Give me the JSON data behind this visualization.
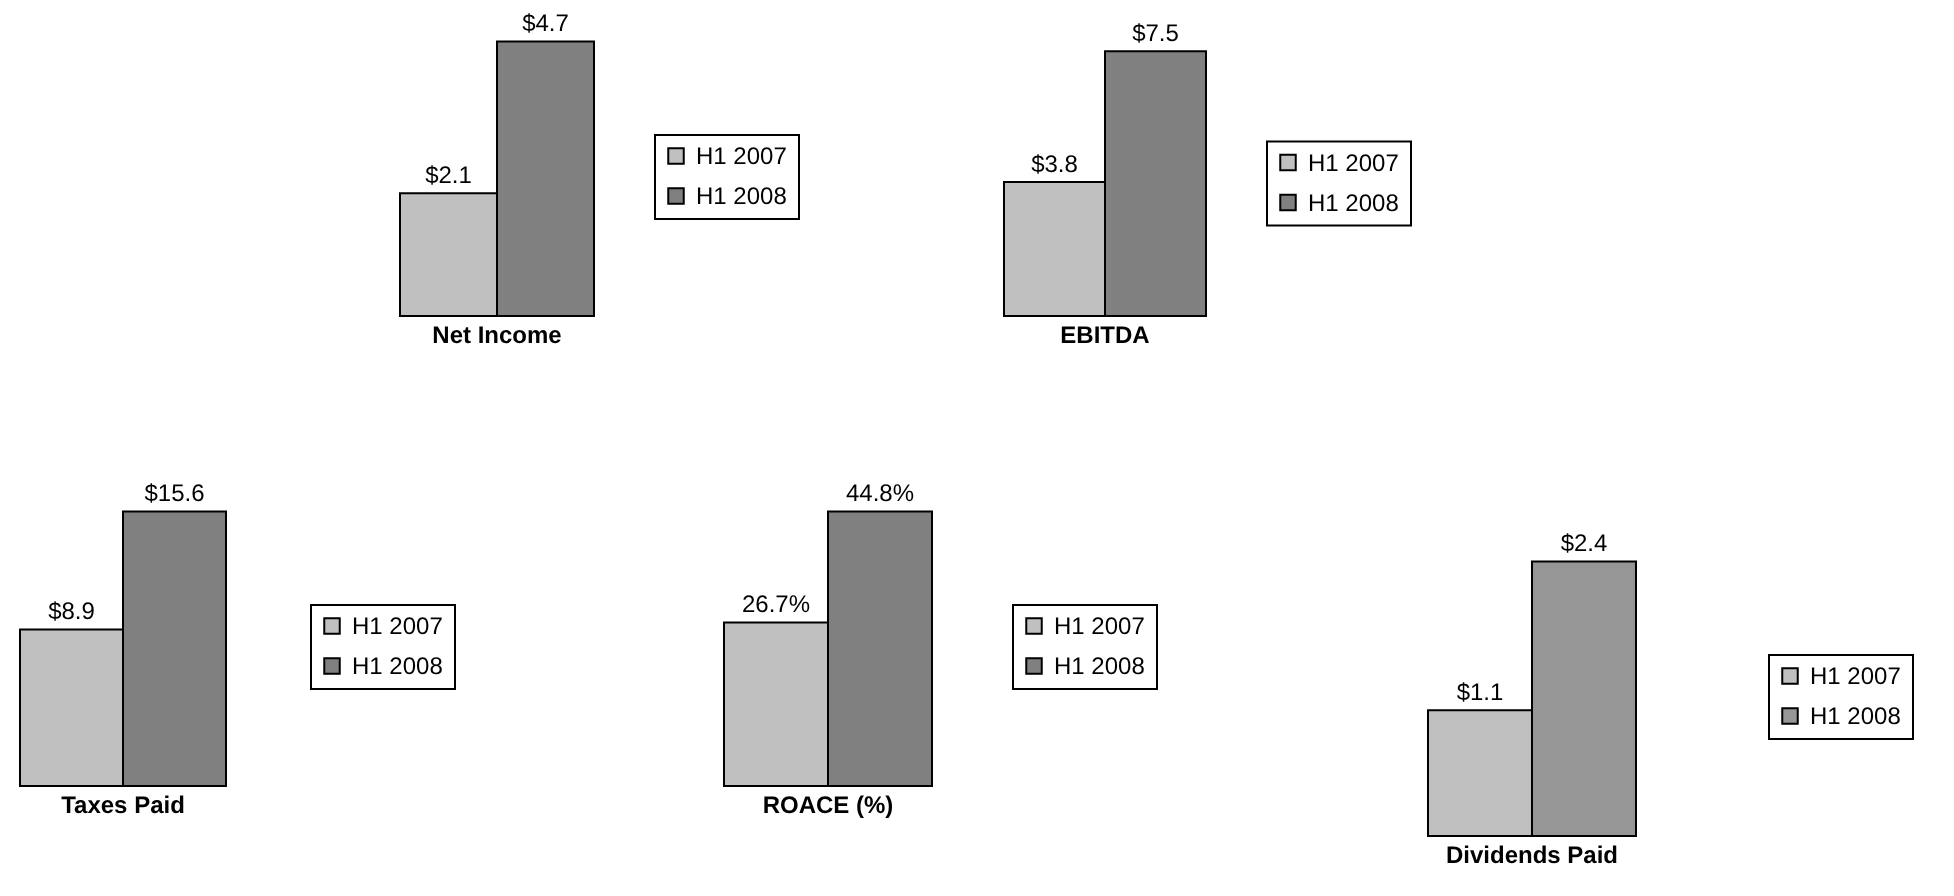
{
  "chart_data": [
    {
      "type": "bar",
      "categories": [
        "Net Income"
      ],
      "legend": "right",
      "series": [
        {
          "name": "H1 2007",
          "color": "#c0c0c0",
          "values": [
            2.1
          ],
          "value_labels": [
            "$2.1"
          ]
        },
        {
          "name": "H1 2008",
          "color": "#808080",
          "values": [
            4.7
          ],
          "value_labels": [
            "$4.7"
          ]
        }
      ]
    },
    {
      "type": "bar",
      "categories": [
        "EBITDA"
      ],
      "legend": "right",
      "series": [
        {
          "name": "H1 2007",
          "color": "#c0c0c0",
          "values": [
            3.8
          ],
          "value_labels": [
            "$3.8"
          ]
        },
        {
          "name": "H1 2008",
          "color": "#808080",
          "values": [
            7.5
          ],
          "value_labels": [
            "$7.5"
          ]
        }
      ]
    },
    {
      "type": "bar",
      "categories": [
        "Taxes Paid"
      ],
      "legend": "right",
      "series": [
        {
          "name": "H1 2007",
          "color": "#c0c0c0",
          "values": [
            8.9
          ],
          "value_labels": [
            "$8.9"
          ]
        },
        {
          "name": "H1 2008",
          "color": "#808080",
          "values": [
            15.6
          ],
          "value_labels": [
            "$15.6"
          ]
        }
      ]
    },
    {
      "type": "bar",
      "categories": [
        "ROACE (%)"
      ],
      "legend": "right",
      "series": [
        {
          "name": "H1 2007",
          "color": "#c0c0c0",
          "values": [
            26.7
          ],
          "value_labels": [
            "26.7%"
          ]
        },
        {
          "name": "H1 2008",
          "color": "#808080",
          "values": [
            44.8
          ],
          "value_labels": [
            "44.8%"
          ]
        }
      ]
    },
    {
      "type": "bar",
      "categories": [
        "Dividends Paid"
      ],
      "legend": "right",
      "series": [
        {
          "name": "H1 2007",
          "color": "#c0c0c0",
          "values": [
            1.1
          ],
          "value_labels": [
            "$1.1"
          ]
        },
        {
          "name": "H1 2008",
          "color": "#969696",
          "values": [
            2.4
          ],
          "value_labels": [
            "$2.4"
          ]
        }
      ]
    }
  ]
}
